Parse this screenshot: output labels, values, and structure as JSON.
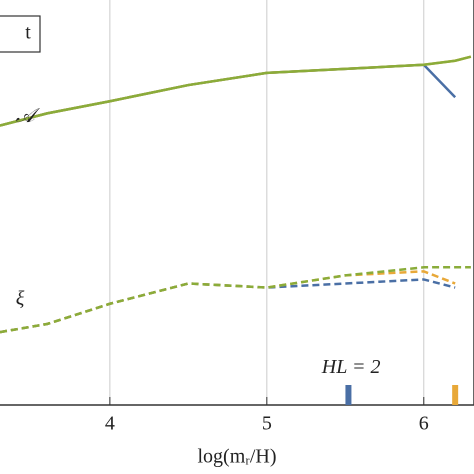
{
  "chart_data": {
    "type": "line",
    "x": [
      3.3,
      3.6,
      4.0,
      4.5,
      5.0,
      5.5,
      6.0,
      6.2,
      6.3
    ],
    "xlim": [
      3.3,
      6.32
    ],
    "xticks": [
      4,
      5,
      6
    ],
    "ylim": [
      0,
      1
    ],
    "xlabel": "log(mᵣ/H)",
    "corner_label": "t",
    "annotations": [
      {
        "text": "𝒜",
        "x": 3.4,
        "y": 0.71
      },
      {
        "text": "ξ",
        "x": 3.4,
        "y": 0.26
      },
      {
        "text": "HL = 2",
        "x": 5.35,
        "y": 0.09
      }
    ],
    "markers": [
      {
        "x": 5.52,
        "color": "#4a6fa5"
      },
      {
        "x": 6.2,
        "color": "#e8a838"
      }
    ],
    "grid": true,
    "series": [
      {
        "color": "#4a6fa5",
        "dashed": false,
        "values": [
          0.69,
          0.72,
          0.75,
          0.79,
          0.82,
          0.83,
          0.84,
          0.76,
          null
        ]
      },
      {
        "color": "#e8a838",
        "dashed": false,
        "values": [
          0.69,
          0.72,
          0.75,
          0.79,
          0.82,
          0.83,
          0.84,
          0.85,
          0.86
        ]
      },
      {
        "color": "#8aac3a",
        "dashed": false,
        "values": [
          0.69,
          0.72,
          0.75,
          0.79,
          0.82,
          0.83,
          0.84,
          0.85,
          0.86
        ]
      },
      {
        "color": "#4a6fa5",
        "dashed": true,
        "values": [
          0.18,
          0.2,
          0.25,
          0.3,
          0.29,
          0.3,
          0.31,
          0.29,
          null
        ]
      },
      {
        "color": "#e8a838",
        "dashed": true,
        "values": [
          0.18,
          0.2,
          0.25,
          0.3,
          0.29,
          0.32,
          0.33,
          0.3,
          null
        ]
      },
      {
        "color": "#8aac3a",
        "dashed": true,
        "values": [
          0.18,
          0.2,
          0.25,
          0.3,
          0.29,
          0.32,
          0.34,
          0.34,
          0.34
        ]
      }
    ]
  }
}
